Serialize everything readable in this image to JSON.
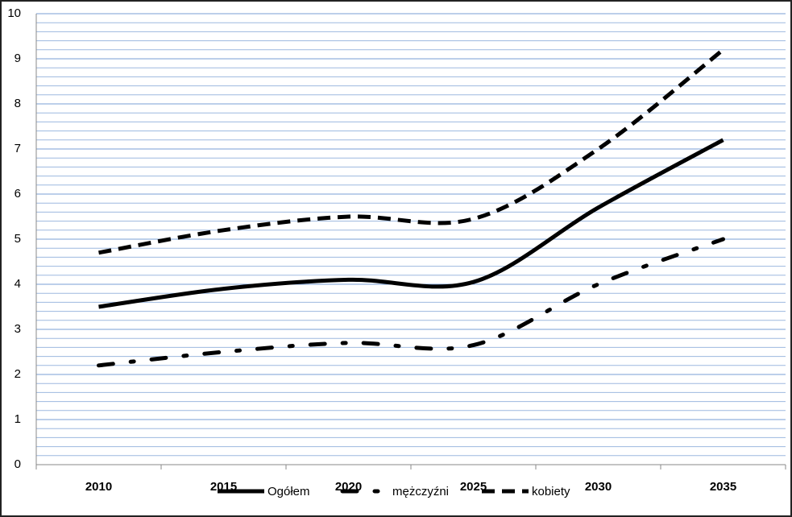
{
  "chart_data": {
    "type": "line",
    "categories": [
      "2010",
      "2015",
      "2020",
      "2025",
      "2030",
      "2035"
    ],
    "series": [
      {
        "name": "Ogółem",
        "color": "#000000",
        "style": "solid",
        "values": [
          3.5,
          3.9,
          4.1,
          4.05,
          5.7,
          7.2
        ]
      },
      {
        "name": "mężczyźni",
        "color": "#000000",
        "style": "dashdot",
        "values": [
          2.2,
          2.5,
          2.7,
          2.65,
          4.0,
          5.0
        ]
      },
      {
        "name": "kobiety",
        "color": "#000000",
        "style": "dash",
        "values": [
          4.7,
          5.2,
          5.5,
          5.45,
          7.0,
          9.2
        ]
      }
    ],
    "ylim": [
      0,
      10
    ],
    "yticks": [
      0,
      1,
      2,
      3,
      4,
      5,
      6,
      7,
      8,
      9,
      10
    ],
    "grid": true,
    "legend": "bottom"
  }
}
